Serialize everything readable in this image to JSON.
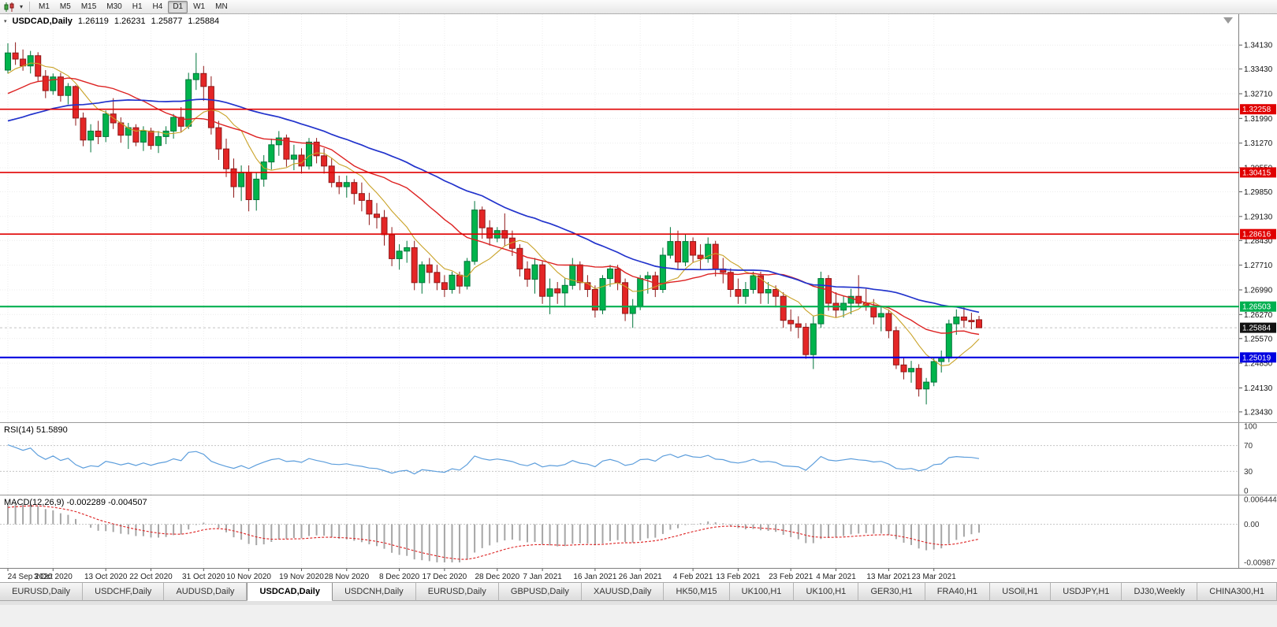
{
  "toolbar": {
    "chart_type_icon": "candlestick-chart-icon",
    "dropdown_icon": "chevron-down-icon",
    "timeframes": [
      "M1",
      "M5",
      "M15",
      "M30",
      "H1",
      "H4",
      "D1",
      "W1",
      "MN"
    ],
    "active_timeframe": "D1"
  },
  "chart": {
    "symbol_period": "USDCAD,Daily",
    "ohlc": {
      "open": "1.26119",
      "high": "1.26231",
      "low": "1.25877",
      "close": "1.25884"
    },
    "price_axis_labels": [
      "1.34130",
      "1.33430",
      "1.32710",
      "1.31990",
      "1.31270",
      "1.30550",
      "1.29850",
      "1.29130",
      "1.28430",
      "1.27710",
      "1.26990",
      "1.26270",
      "1.25570",
      "1.24850",
      "1.24130",
      "1.23430"
    ],
    "scale": {
      "top": 1.3503,
      "bottom": 1.2313
    },
    "levels": [
      {
        "price": 1.32258,
        "label": "1.32258",
        "color": "#E00000",
        "width": 1.6
      },
      {
        "price": 1.30415,
        "label": "1.30415",
        "color": "#E00000",
        "width": 1.6
      },
      {
        "price": 1.28616,
        "label": "1.28616",
        "color": "#E00000",
        "width": 1.6
      },
      {
        "price": 1.26503,
        "label": "1.26503",
        "color": "#00B050",
        "width": 2.2
      },
      {
        "price": 1.25019,
        "label": "1.25019",
        "color": "#0000E0",
        "width": 2.2
      }
    ],
    "current_price": {
      "price": 1.25884,
      "label": "1.25884",
      "badge_color": "#111111"
    }
  },
  "chart_data": {
    "type": "candlestick",
    "symbol": "USDCAD",
    "timeframe": "Daily",
    "y_range": [
      1.2313,
      1.3503
    ],
    "x_tick_indices": [
      0,
      6,
      13,
      19,
      26,
      32,
      39,
      45,
      52,
      58,
      65,
      71,
      78,
      84,
      91,
      97,
      104,
      110,
      117,
      123
    ],
    "x_tick_labels": [
      "24 Sep 2020",
      "3 Oct 2020",
      "13 Oct 2020",
      "22 Oct 2020",
      "31 Oct 2020",
      "10 Nov 2020",
      "19 Nov 2020",
      "28 Nov 2020",
      "8 Dec 2020",
      "17 Dec 2020",
      "28 Dec 2020",
      "7 Jan 2021",
      "16 Jan 2021",
      "26 Jan 2021",
      "4 Feb 2021",
      "13 Feb 2021",
      "23 Feb 2021",
      "4 Mar 2021",
      "13 Mar 2021",
      "23 Mar 2021"
    ],
    "prehistory_closes": [
      1.3182,
      1.3155,
      1.3121,
      1.3098,
      1.3076,
      1.3058,
      1.3072,
      1.3091,
      1.3112,
      1.3131,
      1.3102,
      1.3074,
      1.3052,
      1.3063,
      1.3081,
      1.3103,
      1.3121,
      1.3152,
      1.3171,
      1.3192,
      1.3211,
      1.3183,
      1.3162,
      1.3181,
      1.3203,
      1.3232,
      1.3261,
      1.3242,
      1.3221,
      1.3252,
      1.3272,
      1.3301,
      1.3282,
      1.3262,
      1.3291,
      1.3312,
      1.3331,
      1.3352,
      1.3341,
      1.3362
    ],
    "candles_ohlc": [
      [
        1.334,
        1.3418,
        1.333,
        1.339
      ],
      [
        1.339,
        1.3421,
        1.3355,
        1.3372
      ],
      [
        1.3372,
        1.34,
        1.3338,
        1.3352
      ],
      [
        1.3352,
        1.3396,
        1.333,
        1.3382
      ],
      [
        1.3382,
        1.3392,
        1.3308,
        1.3322
      ],
      [
        1.3322,
        1.334,
        1.3258,
        1.328
      ],
      [
        1.328,
        1.333,
        1.3268,
        1.332
      ],
      [
        1.332,
        1.3332,
        1.3248,
        1.3266
      ],
      [
        1.3266,
        1.3302,
        1.324,
        1.3292
      ],
      [
        1.3292,
        1.3296,
        1.3178,
        1.32
      ],
      [
        1.32,
        1.3216,
        1.3118,
        1.3136
      ],
      [
        1.3136,
        1.3182,
        1.31,
        1.3162
      ],
      [
        1.3162,
        1.3192,
        1.3124,
        1.3146
      ],
      [
        1.3146,
        1.3222,
        1.313,
        1.3212
      ],
      [
        1.3212,
        1.3258,
        1.3168,
        1.3186
      ],
      [
        1.3186,
        1.3202,
        1.3128,
        1.315
      ],
      [
        1.315,
        1.3186,
        1.311,
        1.3172
      ],
      [
        1.3172,
        1.3182,
        1.3118,
        1.313
      ],
      [
        1.313,
        1.3176,
        1.3104,
        1.3162
      ],
      [
        1.3162,
        1.3172,
        1.3108,
        1.312
      ],
      [
        1.312,
        1.3162,
        1.3098,
        1.3146
      ],
      [
        1.3146,
        1.3176,
        1.3124,
        1.3162
      ],
      [
        1.3162,
        1.3212,
        1.314,
        1.3202
      ],
      [
        1.3202,
        1.3232,
        1.3158,
        1.3176
      ],
      [
        1.3176,
        1.3332,
        1.3168,
        1.3312
      ],
      [
        1.3312,
        1.339,
        1.3282,
        1.333
      ],
      [
        1.333,
        1.3352,
        1.325,
        1.3292
      ],
      [
        1.3292,
        1.3322,
        1.3152,
        1.3172
      ],
      [
        1.3172,
        1.3192,
        1.3078,
        1.311
      ],
      [
        1.311,
        1.314,
        1.3028,
        1.3052
      ],
      [
        1.3052,
        1.3082,
        1.2968,
        1.3
      ],
      [
        1.3,
        1.3062,
        1.2958,
        1.3042
      ],
      [
        1.3042,
        1.3062,
        1.2928,
        1.2962
      ],
      [
        1.2962,
        1.3042,
        1.293,
        1.3022
      ],
      [
        1.3022,
        1.3092,
        1.3,
        1.3072
      ],
      [
        1.3072,
        1.314,
        1.305,
        1.3122
      ],
      [
        1.3122,
        1.3162,
        1.309,
        1.3142
      ],
      [
        1.3142,
        1.3152,
        1.3058,
        1.308
      ],
      [
        1.308,
        1.3122,
        1.3048,
        1.3092
      ],
      [
        1.3092,
        1.3112,
        1.3038,
        1.306
      ],
      [
        1.306,
        1.3142,
        1.305,
        1.313
      ],
      [
        1.313,
        1.3142,
        1.3068,
        1.309
      ],
      [
        1.309,
        1.3112,
        1.3038,
        1.306
      ],
      [
        1.306,
        1.3082,
        1.2998,
        1.3012
      ],
      [
        1.3012,
        1.3032,
        1.2978,
        1.3
      ],
      [
        1.3,
        1.3032,
        1.2968,
        1.3012
      ],
      [
        1.3012,
        1.3022,
        1.2948,
        1.298
      ],
      [
        1.298,
        1.3012,
        1.2928,
        1.296
      ],
      [
        1.296,
        1.2982,
        1.2888,
        1.292
      ],
      [
        1.292,
        1.2952,
        1.2878,
        1.291
      ],
      [
        1.291,
        1.2932,
        1.2828,
        1.286
      ],
      [
        1.286,
        1.2882,
        1.2768,
        1.279
      ],
      [
        1.279,
        1.2832,
        1.2758,
        1.2812
      ],
      [
        1.2812,
        1.2842,
        1.2778,
        1.2822
      ],
      [
        1.2822,
        1.2842,
        1.2698,
        1.272
      ],
      [
        1.272,
        1.2782,
        1.2688,
        1.2772
      ],
      [
        1.2772,
        1.2792,
        1.2718,
        1.275
      ],
      [
        1.275,
        1.2772,
        1.2698,
        1.272
      ],
      [
        1.272,
        1.2742,
        1.2678,
        1.27
      ],
      [
        1.27,
        1.2752,
        1.2688,
        1.2742
      ],
      [
        1.2742,
        1.2752,
        1.2688,
        1.271
      ],
      [
        1.271,
        1.2792,
        1.27,
        1.2782
      ],
      [
        1.2782,
        1.2958,
        1.2772,
        1.2932
      ],
      [
        1.2932,
        1.2942,
        1.2848,
        1.288
      ],
      [
        1.288,
        1.2902,
        1.2828,
        1.285
      ],
      [
        1.285,
        1.2882,
        1.2838,
        1.2872
      ],
      [
        1.2872,
        1.2922,
        1.2828,
        1.285
      ],
      [
        1.285,
        1.2872,
        1.2798,
        1.282
      ],
      [
        1.282,
        1.2832,
        1.2738,
        1.276
      ],
      [
        1.276,
        1.2782,
        1.2708,
        1.273
      ],
      [
        1.273,
        1.2792,
        1.2688,
        1.2772
      ],
      [
        1.2772,
        1.2782,
        1.2658,
        1.268
      ],
      [
        1.268,
        1.2732,
        1.2628,
        1.2702
      ],
      [
        1.2702,
        1.2722,
        1.2658,
        1.269
      ],
      [
        1.269,
        1.2732,
        1.2648,
        1.2712
      ],
      [
        1.2712,
        1.2792,
        1.27,
        1.2772
      ],
      [
        1.2772,
        1.2782,
        1.2698,
        1.272
      ],
      [
        1.272,
        1.2742,
        1.2678,
        1.27
      ],
      [
        1.27,
        1.2712,
        1.2618,
        1.264
      ],
      [
        1.264,
        1.2742,
        1.2628,
        1.2732
      ],
      [
        1.2732,
        1.2772,
        1.2708,
        1.276
      ],
      [
        1.276,
        1.2772,
        1.2698,
        1.272
      ],
      [
        1.272,
        1.2732,
        1.2608,
        1.263
      ],
      [
        1.263,
        1.2672,
        1.2588,
        1.2652
      ],
      [
        1.2652,
        1.2742,
        1.264,
        1.2732
      ],
      [
        1.2732,
        1.2752,
        1.2688,
        1.274
      ],
      [
        1.274,
        1.2752,
        1.2678,
        1.27
      ],
      [
        1.27,
        1.2822,
        1.269,
        1.28
      ],
      [
        1.28,
        1.2882,
        1.279,
        1.284
      ],
      [
        1.284,
        1.2872,
        1.2758,
        1.278
      ],
      [
        1.278,
        1.2862,
        1.2768,
        1.284
      ],
      [
        1.284,
        1.2852,
        1.2778,
        1.28
      ],
      [
        1.28,
        1.2832,
        1.2758,
        1.279
      ],
      [
        1.279,
        1.2852,
        1.2778,
        1.2832
      ],
      [
        1.2832,
        1.2842,
        1.2738,
        1.276
      ],
      [
        1.276,
        1.2792,
        1.2718,
        1.275
      ],
      [
        1.275,
        1.2762,
        1.2678,
        1.27
      ],
      [
        1.27,
        1.2732,
        1.2658,
        1.268
      ],
      [
        1.268,
        1.2722,
        1.2658,
        1.27
      ],
      [
        1.27,
        1.2752,
        1.2688,
        1.274
      ],
      [
        1.274,
        1.2752,
        1.2658,
        1.269
      ],
      [
        1.269,
        1.2722,
        1.2658,
        1.27
      ],
      [
        1.27,
        1.2712,
        1.2648,
        1.268
      ],
      [
        1.268,
        1.2692,
        1.2588,
        1.261
      ],
      [
        1.261,
        1.2642,
        1.2578,
        1.26
      ],
      [
        1.26,
        1.2622,
        1.2558,
        1.259
      ],
      [
        1.259,
        1.2602,
        1.2498,
        1.251
      ],
      [
        1.251,
        1.2622,
        1.2468,
        1.26
      ],
      [
        1.26,
        1.2752,
        1.2588,
        1.2732
      ],
      [
        1.2732,
        1.2742,
        1.2638,
        1.266
      ],
      [
        1.266,
        1.2692,
        1.2618,
        1.264
      ],
      [
        1.264,
        1.2682,
        1.2618,
        1.266
      ],
      [
        1.266,
        1.2702,
        1.2628,
        1.268
      ],
      [
        1.268,
        1.2742,
        1.2648,
        1.266
      ],
      [
        1.266,
        1.2702,
        1.2638,
        1.265
      ],
      [
        1.265,
        1.2672,
        1.2598,
        1.262
      ],
      [
        1.262,
        1.2652,
        1.2578,
        1.263
      ],
      [
        1.263,
        1.2642,
        1.2558,
        1.258
      ],
      [
        1.258,
        1.2592,
        1.2468,
        1.248
      ],
      [
        1.248,
        1.2502,
        1.2438,
        1.246
      ],
      [
        1.246,
        1.2492,
        1.2428,
        1.247
      ],
      [
        1.247,
        1.2482,
        1.2388,
        1.241
      ],
      [
        1.241,
        1.2442,
        1.2365,
        1.243
      ],
      [
        1.243,
        1.2502,
        1.2418,
        1.249
      ],
      [
        1.249,
        1.2522,
        1.2458,
        1.25
      ],
      [
        1.25,
        1.2612,
        1.2488,
        1.26
      ],
      [
        1.26,
        1.2642,
        1.2568,
        1.262
      ],
      [
        1.262,
        1.2652,
        1.2588,
        1.261
      ],
      [
        1.261,
        1.2632,
        1.2584,
        1.2606
      ],
      [
        1.26119,
        1.26231,
        1.25877,
        1.25884
      ]
    ],
    "colors": {
      "up": "#00B44C",
      "up_stroke": "#00753A",
      "down": "#E42626",
      "down_stroke": "#8F1818"
    },
    "moving_averages": [
      {
        "type": "sma",
        "period": 8,
        "color": "#C9A227",
        "width": 1.1
      },
      {
        "type": "sma",
        "period": 20,
        "color": "#DD2222",
        "width": 1.4
      },
      {
        "type": "sma",
        "period": 40,
        "color": "#2233CC",
        "width": 1.7
      }
    ]
  },
  "rsi": {
    "label": "RSI(14) 51.5890",
    "period": 14,
    "axis_labels": [
      "100",
      "70",
      "30",
      "0"
    ],
    "axis_values": [
      100,
      70,
      30,
      0
    ],
    "guide_levels": [
      70,
      30
    ],
    "line_color": "#5D9EDC"
  },
  "macd": {
    "label": "MACD(12,26,9) -0.002289 -0.004507",
    "fast": 12,
    "slow": 26,
    "signal": 9,
    "axis_labels": [
      "0.006444",
      "0.00",
      "-0.00987"
    ],
    "range": [
      -0.00987,
      0.006444
    ],
    "histogram_color": "#A6A6A6",
    "signal_color": "#DD2222"
  },
  "tabs": {
    "active_index": 3,
    "items": [
      "EURUSD,Daily",
      "USDCHF,Daily",
      "AUDUSD,Daily",
      "USDCAD,Daily",
      "USDCNH,Daily",
      "EURUSD,Daily",
      "GBPUSD,Daily",
      "XAUUSD,Daily",
      "HK50,M15",
      "UK100,H1",
      "UK100,H1",
      "GER30,H1",
      "FRA40,H1",
      "USOil,H1",
      "USDJPY,H1",
      "DJ30,Weekly",
      "CHINA300,H1"
    ]
  }
}
